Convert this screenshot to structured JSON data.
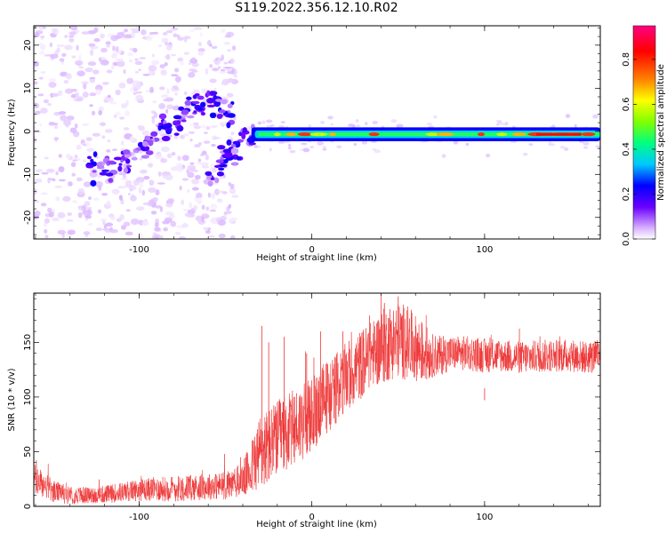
{
  "title": "S119.2022.356.12.10.R02",
  "colors": {
    "snr_line": "#ee3333",
    "frame": "#000000"
  },
  "chart_data": [
    {
      "type": "heatmap",
      "name": "spectrogram",
      "xlabel": "Height of straight line (km)",
      "ylabel": "Frequency (Hz)",
      "xlim": [
        -161,
        167
      ],
      "ylim": [
        -25,
        24.5
      ],
      "x_ticks": [
        -100,
        0,
        100
      ],
      "x_tick_labels": [
        "-100",
        "0",
        "100"
      ],
      "y_ticks": [
        -20,
        -10,
        0,
        10,
        20
      ],
      "y_tick_labels": [
        "-20",
        "-10",
        "0",
        "10",
        "20"
      ],
      "colorbar": {
        "label": "Normalized spectral amplitude",
        "ticks": [
          0.0,
          0.2,
          0.4,
          0.6,
          0.8
        ],
        "tick_labels": [
          "0.0",
          "0.2",
          "0.4",
          "0.6",
          "0.8"
        ],
        "range": [
          0,
          0.95
        ],
        "colors": [
          "#ffffff",
          "#d9b3ff",
          "#6a00ff",
          "#0000ff",
          "#00c8ff",
          "#00ff80",
          "#80ff00",
          "#ffff00",
          "#ff8000",
          "#ff0000",
          "#ff0080"
        ]
      },
      "features": {
        "noise_region_x": [
          -161,
          -44
        ],
        "diagonal_trace": [
          [
            -130,
            -8
          ],
          [
            -115,
            -8
          ],
          [
            -100,
            -5
          ],
          [
            -90,
            -1
          ],
          [
            -80,
            2
          ],
          [
            -70,
            5
          ],
          [
            -60,
            8
          ],
          [
            -52,
            5
          ],
          [
            -45,
            4
          ]
        ],
        "branch_trace": [
          [
            -60,
            -11
          ],
          [
            -55,
            -9
          ],
          [
            -48,
            -5
          ],
          [
            -40,
            -2
          ],
          [
            -33,
            0
          ]
        ],
        "tone_band_x": [
          -35,
          167
        ],
        "tone_band_frequency": -0.7,
        "tone_hotspots_x": [
          -20,
          -12,
          -4,
          4,
          12,
          36,
          70,
          77,
          98,
          110,
          120,
          130,
          140,
          150,
          160
        ]
      }
    },
    {
      "type": "line",
      "name": "snr",
      "xlabel": "Height of straight line (km)",
      "ylabel": "SNR (10 * v/v)",
      "xlim": [
        -161,
        167
      ],
      "ylim": [
        0,
        195
      ],
      "x_ticks": [
        -100,
        0,
        100
      ],
      "x_tick_labels": [
        "-100",
        "0",
        "100"
      ],
      "y_ticks": [
        0,
        50,
        100,
        150
      ],
      "y_tick_labels": [
        "0",
        "50",
        "100",
        "150"
      ],
      "series": [
        {
          "x": [
            -161,
            -150,
            -140,
            -130,
            -120,
            -110,
            -100,
            -90,
            -80,
            -70,
            -60,
            -50,
            -45,
            -40,
            -35,
            -30,
            -25,
            -20,
            -15,
            -10,
            -5,
            0,
            5,
            10,
            15,
            20,
            25,
            30,
            35,
            40,
            45,
            50,
            55,
            60,
            65,
            70,
            75,
            80,
            90,
            100,
            110,
            120,
            130,
            140,
            150,
            160,
            167
          ],
          "y": [
            25,
            14,
            10,
            10,
            11,
            13,
            15,
            16,
            16,
            17,
            18,
            19,
            21,
            25,
            35,
            50,
            55,
            62,
            68,
            72,
            78,
            82,
            95,
            102,
            110,
            118,
            125,
            132,
            140,
            145,
            150,
            152,
            150,
            145,
            140,
            138,
            138,
            140,
            140,
            138,
            138,
            136,
            137,
            138,
            138,
            136,
            138
          ],
          "spread": [
            15,
            10,
            8,
            8,
            8,
            9,
            10,
            11,
            12,
            12,
            12,
            13,
            14,
            16,
            25,
            35,
            35,
            35,
            35,
            35,
            35,
            35,
            35,
            35,
            32,
            32,
            32,
            32,
            30,
            35,
            35,
            35,
            35,
            30,
            28,
            20,
            18,
            16,
            16,
            16,
            15,
            15,
            15,
            15,
            15,
            15,
            15
          ]
        }
      ],
      "spikes": [
        [
          -29,
          165
        ],
        [
          -25,
          150
        ],
        [
          -16,
          155
        ],
        [
          -3,
          140
        ],
        [
          5,
          160
        ],
        [
          18,
          160
        ],
        [
          42,
          186
        ],
        [
          50,
          192
        ],
        [
          100,
          97
        ]
      ]
    }
  ]
}
